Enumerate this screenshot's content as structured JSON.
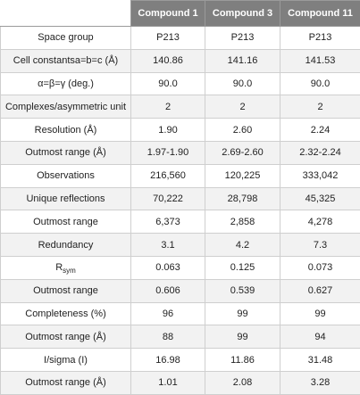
{
  "table": {
    "corner": "",
    "columns": [
      "Compound 1",
      "Compound 3",
      "Compound 11"
    ],
    "rows": [
      {
        "label": "Space group",
        "values": [
          "P213",
          "P213",
          "P213"
        ]
      },
      {
        "label": "Cell constantsa=b=c (Å)",
        "values": [
          "140.86",
          "141.16",
          "141.53"
        ]
      },
      {
        "label": "α=β=γ (deg.)",
        "values": [
          "90.0",
          "90.0",
          "90.0"
        ]
      },
      {
        "label": "Complexes/asymmetric unit",
        "values": [
          "2",
          "2",
          "2"
        ]
      },
      {
        "label": "Resolution (Å)",
        "values": [
          "1.90",
          "2.60",
          "2.24"
        ]
      },
      {
        "label": "Outmost range (Å)",
        "values": [
          "1.97-1.90",
          "2.69-2.60",
          "2.32-2.24"
        ]
      },
      {
        "label": "Observations",
        "values": [
          "216,560",
          "120,225",
          "333,042"
        ]
      },
      {
        "label": "Unique reflections",
        "values": [
          "70,222",
          "28,798",
          "45,325"
        ]
      },
      {
        "label": "Outmost range",
        "values": [
          "6,373",
          "2,858",
          "4,278"
        ]
      },
      {
        "label": "Redundancy",
        "values": [
          "3.1",
          "4.2",
          "7.3"
        ]
      },
      {
        "label_main": "R",
        "label_sub": "sym",
        "values": [
          "0.063",
          "0.125",
          "0.073"
        ]
      },
      {
        "label": "Outmost range",
        "values": [
          "0.606",
          "0.539",
          "0.627"
        ]
      },
      {
        "label": "Completeness (%)",
        "values": [
          "96",
          "99",
          "99"
        ]
      },
      {
        "label": "Outmost range (Å)",
        "values": [
          "88",
          "99",
          "94"
        ]
      },
      {
        "label": "I/sigma (I)",
        "values": [
          "16.98",
          "11.86",
          "31.48"
        ]
      },
      {
        "label": "Outmost range (Å)",
        "values": [
          "1.01",
          "2.08",
          "3.28"
        ]
      }
    ]
  }
}
